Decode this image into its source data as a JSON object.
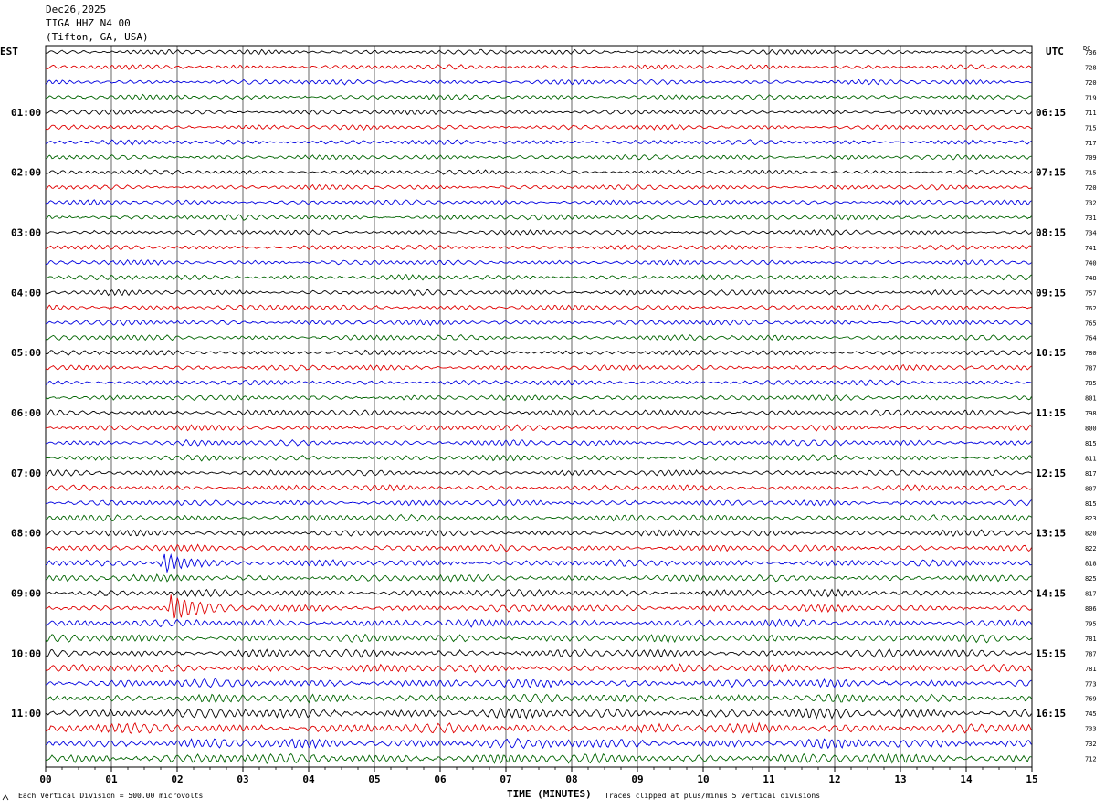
{
  "header": {
    "date": "Dec26,2025",
    "station": "TIGA HHZ N4 00",
    "location": "(Tifton, GA, USA)"
  },
  "left_zone_label": "EST",
  "right_zone_label": "UTC",
  "dc_label": "DC",
  "footer": {
    "scale_note": "Each Vertical Division =  500.00 microvolts",
    "clip_note": "Traces clipped at plus/minus 5 vertical divisions"
  },
  "colors": {
    "trace_cycle": [
      "#000000",
      "#e00000",
      "#0000e0",
      "#006400"
    ],
    "grid": "#000000"
  },
  "chart_data": {
    "type": "line",
    "title": "",
    "xlabel": "TIME (MINUTES)",
    "ylabel": "",
    "xlim": [
      0,
      15
    ],
    "x_ticks": [
      "00",
      "01",
      "02",
      "03",
      "04",
      "05",
      "06",
      "07",
      "08",
      "09",
      "10",
      "11",
      "12",
      "13",
      "14",
      "15"
    ],
    "row_count": 48,
    "est_hour_labels": [
      "01:00",
      "02:00",
      "03:00",
      "04:00",
      "05:00",
      "06:00",
      "07:00",
      "08:00",
      "09:00",
      "10:00",
      "11:00"
    ],
    "utc_hour_labels": [
      "06:15",
      "07:15",
      "08:15",
      "09:15",
      "10:15",
      "11:15",
      "12:15",
      "13:15",
      "14:15",
      "15:15",
      "16:15"
    ],
    "dc_offsets": [
      736,
      728,
      720,
      719,
      711,
      715,
      717,
      709,
      715,
      720,
      732,
      731,
      734,
      741,
      740,
      748,
      757,
      762,
      765,
      764,
      780,
      787,
      785,
      801,
      798,
      800,
      815,
      811,
      817,
      807,
      815,
      823,
      820,
      822,
      818,
      825,
      817,
      806,
      795,
      781,
      787,
      781,
      773,
      769,
      745,
      733,
      732,
      712
    ],
    "amplitude_by_row": [
      0.5,
      0.5,
      0.5,
      0.5,
      0.5,
      0.5,
      0.5,
      0.5,
      0.5,
      0.5,
      0.5,
      0.55,
      0.5,
      0.5,
      0.5,
      0.55,
      0.55,
      0.55,
      0.55,
      0.55,
      0.55,
      0.55,
      0.55,
      0.55,
      0.6,
      0.6,
      0.6,
      0.6,
      0.6,
      0.6,
      0.6,
      0.65,
      0.65,
      0.65,
      0.7,
      0.7,
      0.75,
      0.75,
      0.75,
      0.8,
      0.8,
      0.8,
      0.85,
      0.9,
      1.0,
      1.0,
      1.0,
      1.0
    ],
    "events": [
      {
        "row": 34,
        "minute": 1.8,
        "amplitude": 2.6,
        "duration_minutes": 0.9
      },
      {
        "row": 37,
        "minute": 1.9,
        "amplitude": 3.0,
        "duration_minutes": 0.9
      }
    ]
  }
}
